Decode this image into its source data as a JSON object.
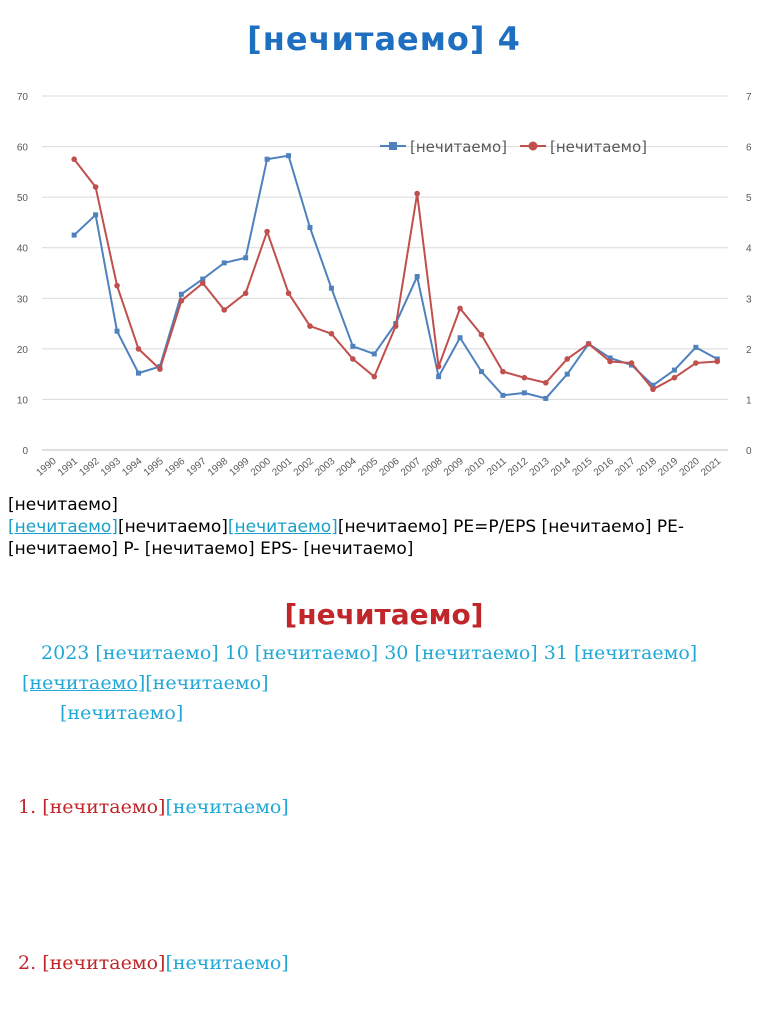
{
  "page": {
    "title": "[нечитаемо] 4"
  },
  "chart_data": {
    "type": "line",
    "title": "",
    "xlabel": "",
    "ylabel": "",
    "categories": [
      "1990",
      "1991",
      "1992",
      "1993",
      "1994",
      "1995",
      "1996",
      "1997",
      "1998",
      "1999",
      "2000",
      "2001",
      "2002",
      "2003",
      "2004",
      "2005",
      "2006",
      "2007",
      "2008",
      "2009",
      "2010",
      "2011",
      "2012",
      "2013",
      "2014",
      "2015",
      "2016",
      "2017",
      "2018",
      "2019",
      "2020",
      "2021"
    ],
    "left_axis": {
      "ylim": [
        0,
        70
      ],
      "ticks": [
        "0",
        "10",
        "20",
        "30",
        "40",
        "50",
        "60",
        "70"
      ]
    },
    "right_axis": {
      "ylim": [
        0,
        7
      ],
      "ticks": [
        "0",
        "1",
        "2",
        "3",
        "4",
        "5",
        "6",
        "7"
      ]
    },
    "grid": true,
    "legend": "top-right",
    "series": [
      {
        "name": "[нечитаемо]",
        "axis": "left",
        "color": "#4f81bd",
        "marker": "square",
        "values": [
          null,
          42.5,
          46.5,
          23.5,
          15.2,
          16.5,
          30.8,
          33.8,
          37.0,
          38.0,
          57.5,
          58.2,
          44.0,
          32.0,
          20.5,
          19.0,
          25.0,
          34.3,
          14.5,
          22.2,
          15.5,
          10.8,
          11.3,
          10.2,
          15.0,
          21.0,
          18.2,
          16.8,
          12.8,
          15.8,
          20.3,
          18.0
        ]
      },
      {
        "name": "[нечитаемо]",
        "axis": "right",
        "color": "#c0504d",
        "marker": "circle",
        "values": [
          null,
          5.75,
          5.2,
          3.25,
          2.0,
          1.6,
          2.95,
          3.3,
          2.77,
          3.1,
          4.32,
          3.1,
          2.45,
          2.3,
          1.8,
          1.45,
          2.45,
          5.07,
          1.65,
          2.8,
          2.28,
          1.55,
          1.43,
          1.33,
          1.8,
          2.1,
          1.75,
          1.72,
          1.2,
          1.43,
          1.72,
          1.75
        ]
      }
    ]
  },
  "note": {
    "line1": "[нечитаемо]",
    "link1": "[нечитаемо]",
    "mid1": "[нечитаемо]",
    "link2": "[нечитаемо]",
    "formula": "[нечитаемо] PE=P/EPS [нечитаемо] PE- [нечитаемо] P- [нечитаемо] EPS- [нечитаемо]"
  },
  "section": {
    "title": "[нечитаемо]",
    "para1_a": "2023 [нечитаемо] 10 [нечитаемо] 30 [нечитаемо] 31 [нечитаемо]",
    "para1_ul": "[нечитаемо]",
    "para1_b": "[нечитаемо]",
    "para2": "[нечитаемо]"
  },
  "items": [
    {
      "num": "1.",
      "lead": "[нечитаемо]",
      "body": "[нечитаемо]"
    },
    {
      "num": "2.",
      "lead": "[нечитаемо]",
      "body": "[нечитаемо]"
    }
  ]
}
